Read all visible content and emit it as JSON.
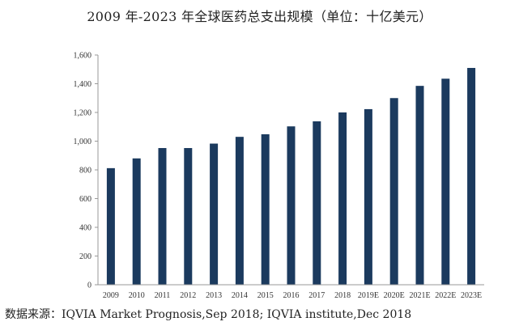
{
  "chart_data": {
    "type": "bar",
    "title": "2009 年-2023 年全球医药总支出规模（单位：十亿美元）",
    "xlabel": "",
    "ylabel": "",
    "categories": [
      "2009",
      "2010",
      "2011",
      "2012",
      "2013",
      "2014",
      "2015",
      "2016",
      "2017",
      "2018",
      "2019E",
      "2020E",
      "2021E",
      "2022E",
      "2023E"
    ],
    "values": [
      812,
      880,
      952,
      952,
      983,
      1030,
      1048,
      1103,
      1138,
      1200,
      1223,
      1300,
      1385,
      1435,
      1510
    ],
    "ylim": [
      0,
      1600
    ],
    "yticks": [
      0,
      200,
      400,
      600,
      800,
      1000,
      1200,
      1400,
      1600
    ],
    "ytick_labels": [
      "0",
      "200",
      "400",
      "600",
      "800",
      "1,000",
      "1,200",
      "1,400",
      "1,600"
    ],
    "bar_color": "#1b3a5e",
    "grid": false,
    "legend": "none"
  },
  "source": "数据来源：IQVIA Market Prognosis,Sep 2018; IQVIA institute,Dec 2018"
}
